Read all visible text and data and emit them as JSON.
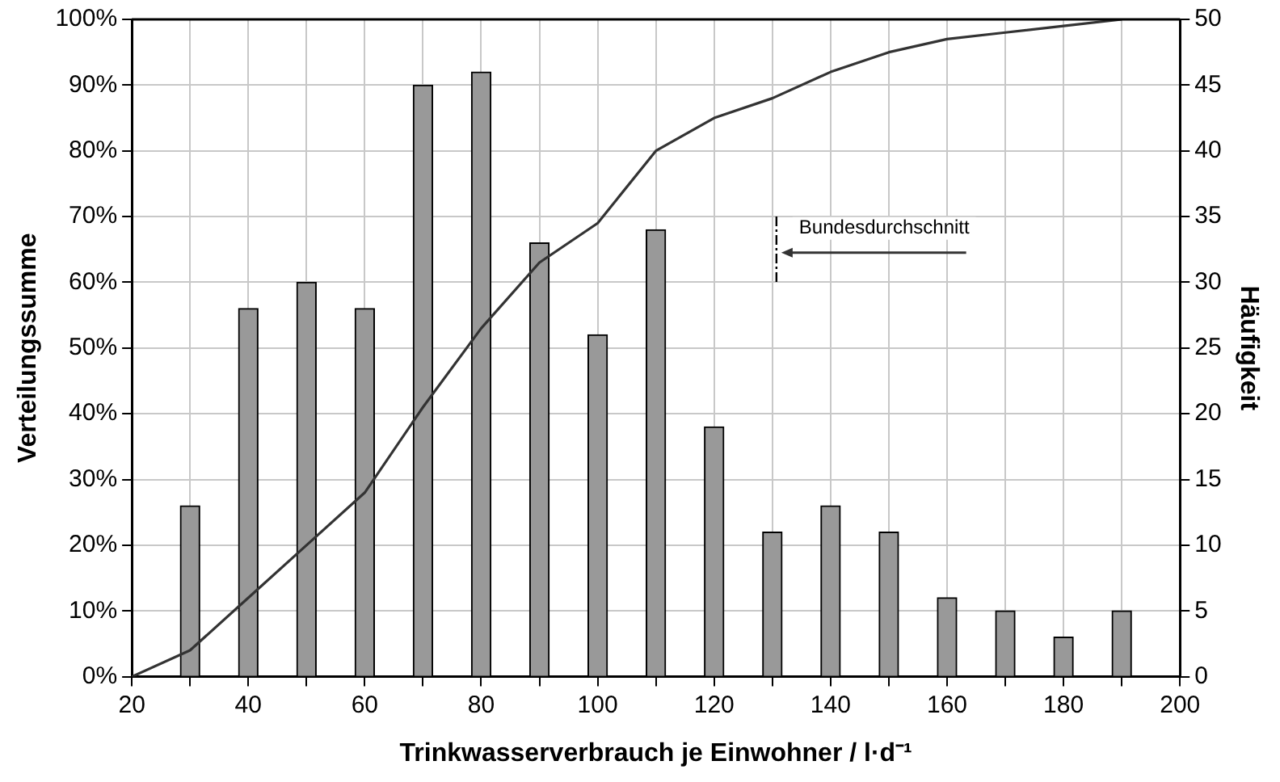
{
  "chart_data": {
    "type": "bar",
    "xlabel": "Trinkwasserverbrauch je Einwohner / l·d⁻¹",
    "ylabel": "Verteilungssumme",
    "y2label": "Häufigkeit",
    "xlim": [
      20,
      200
    ],
    "xticks": [
      20,
      {
        "value": 30,
        "label": null
      },
      40,
      {
        "value": 50,
        "label": null
      },
      60,
      {
        "value": 70,
        "label": null
      },
      80,
      {
        "value": 90,
        "label": null
      },
      100,
      {
        "value": 110,
        "label": null
      },
      120,
      {
        "value": 130,
        "label": null
      },
      140,
      {
        "value": 150,
        "label": null
      },
      160,
      {
        "value": 170,
        "label": null
      },
      180,
      {
        "value": 190,
        "label": null
      },
      200
    ],
    "ylim": [
      0,
      100
    ],
    "yticks": [
      {
        "value": 0,
        "label": "0%"
      },
      {
        "value": 10,
        "label": "10%"
      },
      {
        "value": 20,
        "label": "20%"
      },
      {
        "value": 30,
        "label": "30%"
      },
      {
        "value": 40,
        "label": "40%"
      },
      {
        "value": 50,
        "label": "50%"
      },
      {
        "value": 60,
        "label": "60%"
      },
      {
        "value": 70,
        "label": "70%"
      },
      {
        "value": 80,
        "label": "80%"
      },
      {
        "value": 90,
        "label": "90%"
      },
      {
        "value": 100,
        "label": "100%"
      }
    ],
    "y2lim": [
      0,
      50
    ],
    "y2ticks": [
      0,
      5,
      10,
      15,
      20,
      25,
      30,
      35,
      40,
      45,
      50
    ],
    "grid": true,
    "legend": false,
    "series": [
      {
        "axis": "y2",
        "color": "#999999",
        "x": [
          30,
          40,
          50,
          60,
          70,
          80,
          90,
          100,
          110,
          120,
          130,
          140,
          150,
          160,
          170,
          180,
          190
        ],
        "values": [
          13,
          28,
          30,
          28,
          45,
          46,
          33,
          26,
          34,
          19,
          11,
          13,
          11,
          6,
          5,
          3,
          5
        ]
      },
      {
        "type": "line",
        "axis": "y",
        "color": "#333333",
        "marker": "none",
        "line_style": "solid",
        "x": [
          20,
          30,
          40,
          50,
          60,
          70,
          80,
          90,
          100,
          110,
          120,
          130,
          140,
          150,
          160,
          170,
          180,
          190
        ],
        "values": [
          0,
          4,
          12,
          20,
          28,
          41,
          53,
          63,
          69,
          80,
          85,
          88,
          92,
          95,
          97,
          98,
          99,
          100
        ]
      }
    ],
    "annotations": [
      "Bundesdurchschnitt"
    ]
  }
}
